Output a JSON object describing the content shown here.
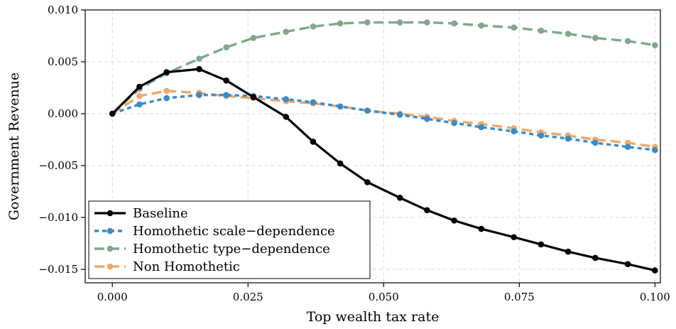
{
  "chart_data": {
    "type": "line",
    "xlabel": "Top wealth tax rate",
    "ylabel": "Government Revenue",
    "xlim": [
      -0.005,
      0.101
    ],
    "ylim": [
      -0.0163,
      0.01
    ],
    "xticks": [
      0.0,
      0.025,
      0.05,
      0.075,
      0.1
    ],
    "xtick_labels": [
      "0.000",
      "0.025",
      "0.050",
      "0.075",
      "0.100"
    ],
    "yticks": [
      -0.015,
      -0.01,
      -0.005,
      0.0,
      0.005,
      0.01
    ],
    "ytick_labels": [
      "−0.015",
      "−0.010",
      "−0.005",
      "0.000",
      "0.005",
      "0.010"
    ],
    "grid": true,
    "legend_position": "lower-left",
    "x": [
      0.0,
      0.005,
      0.01,
      0.016,
      0.021,
      0.026,
      0.032,
      0.037,
      0.042,
      0.047,
      0.053,
      0.058,
      0.063,
      0.068,
      0.074,
      0.079,
      0.084,
      0.089,
      0.095,
      0.1
    ],
    "series": [
      {
        "name": "Baseline",
        "color": "#000000",
        "style": "solid",
        "values": [
          0.0,
          0.0026,
          0.004,
          0.0043,
          0.0032,
          0.0016,
          -0.0003,
          -0.0027,
          -0.0048,
          -0.0066,
          -0.0081,
          -0.0093,
          -0.0103,
          -0.0111,
          -0.0119,
          -0.0126,
          -0.0133,
          -0.0139,
          -0.0145,
          -0.0151
        ]
      },
      {
        "name": "Homothetic scale−dependence",
        "color": "#3a8ac8",
        "style": "dotted",
        "values": [
          0.0,
          0.0009,
          0.0015,
          0.0018,
          0.0018,
          0.0017,
          0.0014,
          0.0011,
          0.0007,
          0.0003,
          -0.0001,
          -0.0005,
          -0.0009,
          -0.0013,
          -0.0017,
          -0.0021,
          -0.0024,
          -0.0028,
          -0.0032,
          -0.0035
        ]
      },
      {
        "name": "Homothetic type−dependence",
        "color": "#7fa88b",
        "style": "dashed",
        "values": [
          0.0,
          0.0024,
          0.0039,
          0.0053,
          0.0064,
          0.0073,
          0.0079,
          0.0084,
          0.0087,
          0.0088,
          0.0088,
          0.0088,
          0.0087,
          0.0085,
          0.0083,
          0.008,
          0.0077,
          0.0073,
          0.007,
          0.0066
        ]
      },
      {
        "name": "Non Homothetic",
        "color": "#f0a868",
        "style": "dashed",
        "values": [
          0.0,
          0.0017,
          0.0022,
          0.002,
          0.0017,
          0.0015,
          0.0012,
          0.001,
          0.0007,
          0.0003,
          0.0,
          -0.0003,
          -0.0007,
          -0.001,
          -0.0014,
          -0.0018,
          -0.0021,
          -0.0025,
          -0.0028,
          -0.0032
        ]
      }
    ]
  }
}
